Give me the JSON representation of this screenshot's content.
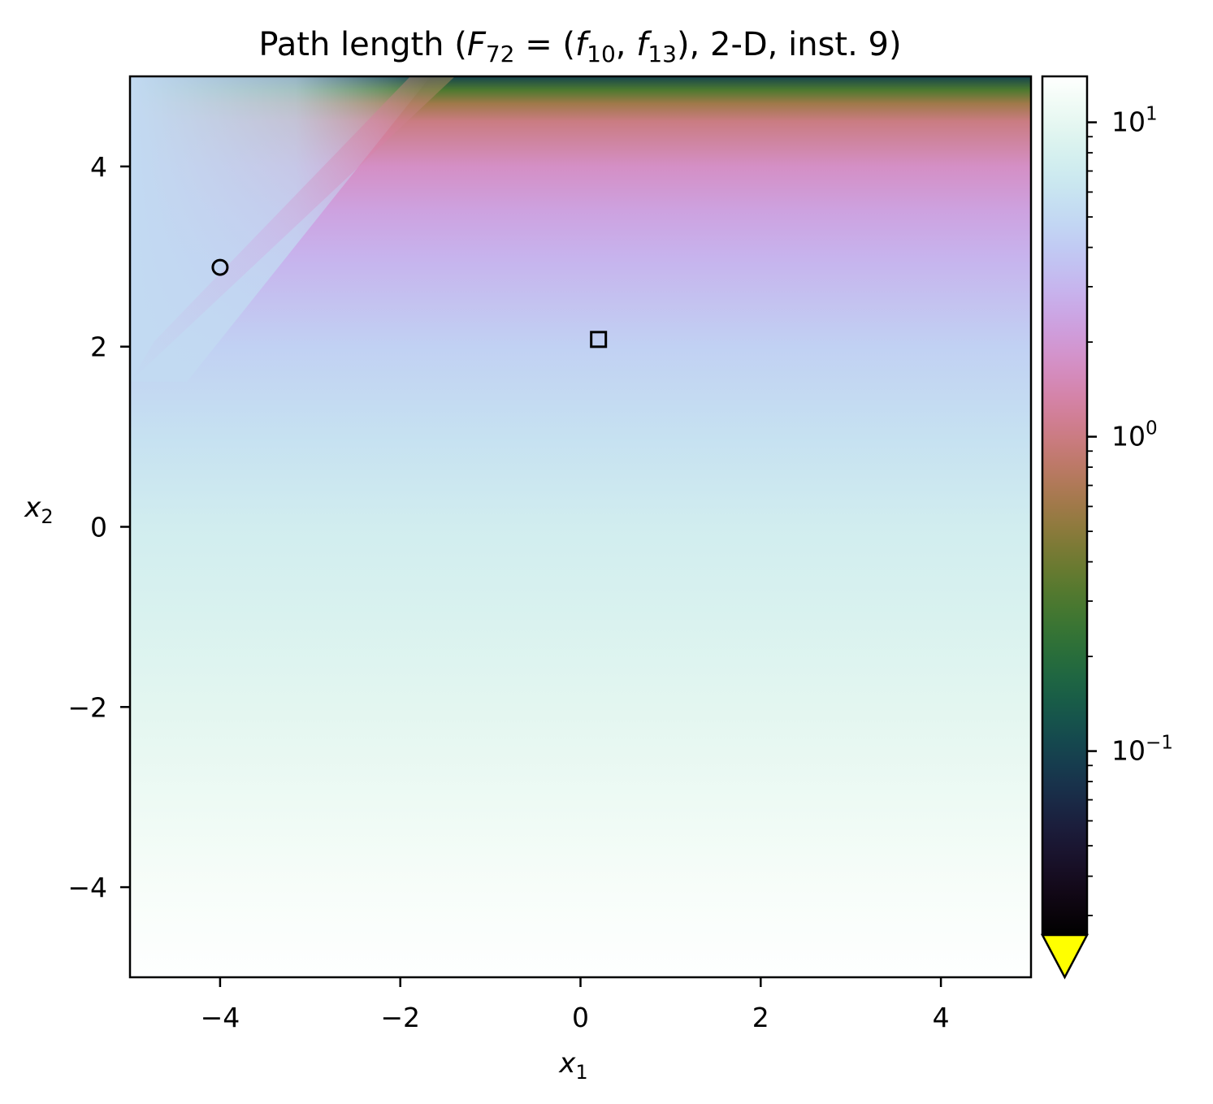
{
  "chart_data": {
    "type": "heatmap",
    "title": {
      "prefix": "Path length (",
      "F": "F",
      "F_sub": "72",
      "eq": " = (",
      "f1": "f",
      "f1_sub": "10",
      "comma": ", ",
      "f2": "f",
      "f2_sub": "13",
      "suffix": "), 2-D, inst. 9)"
    },
    "xlabel": {
      "base": "x",
      "sub": "1"
    },
    "ylabel": {
      "base": "x",
      "sub": "2"
    },
    "xlim": [
      -5,
      5
    ],
    "ylim": [
      -5,
      5
    ],
    "x_ticks": [
      -4,
      -2,
      0,
      2,
      4
    ],
    "y_ticks": [
      -4,
      -2,
      0,
      2,
      4
    ],
    "x_tick_labels": [
      "−4",
      "−2",
      "0",
      "2",
      "4"
    ],
    "y_tick_labels": [
      "−4",
      "−2",
      "0",
      "2",
      "4"
    ],
    "colorbar": {
      "scale": "log",
      "range": [
        0.026,
        14
      ],
      "ticks": [
        {
          "value": 10,
          "base": "10",
          "exp": "1"
        },
        {
          "value": 1,
          "base": "10",
          "exp": "0"
        },
        {
          "value": 0.1,
          "base": "10",
          "exp": "−1"
        }
      ],
      "extend": "min",
      "extend_color": "#ffff00",
      "colormap": "cubehelix"
    },
    "gradient_stops": [
      {
        "y": -5.0,
        "value": 13.9
      },
      {
        "y": -4.0,
        "value": 12.5
      },
      {
        "y": -3.0,
        "value": 11.0
      },
      {
        "y": -2.0,
        "value": 9.6
      },
      {
        "y": -1.0,
        "value": 8.4
      },
      {
        "y": 0.0,
        "value": 7.3
      },
      {
        "y": 1.0,
        "value": 5.7
      },
      {
        "y": 2.0,
        "value": 4.4
      },
      {
        "y": 3.0,
        "value": 2.9
      },
      {
        "y": 3.5,
        "value": 2.3
      },
      {
        "y": 4.0,
        "value": 1.7
      },
      {
        "y": 4.5,
        "value": 1.0
      },
      {
        "y": 4.7,
        "value": 0.6
      },
      {
        "y": 4.85,
        "value": 0.3
      },
      {
        "y": 5.0,
        "value": 0.1
      }
    ],
    "markers": [
      {
        "shape": "circle",
        "x": -4.0,
        "y": 2.88
      },
      {
        "shape": "square",
        "x": 0.2,
        "y": 2.08
      }
    ]
  }
}
